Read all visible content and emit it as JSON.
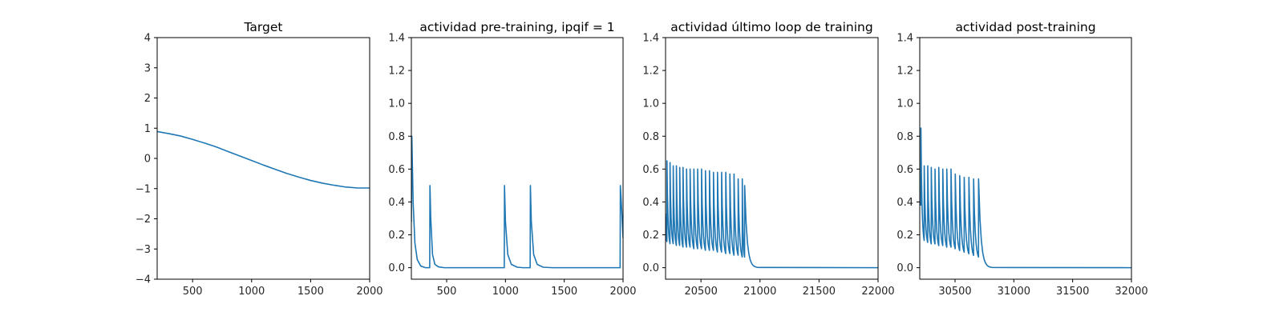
{
  "chart_data": [
    {
      "type": "line",
      "title": "Target",
      "xlim": [
        200,
        2000
      ],
      "ylim": [
        -4,
        4
      ],
      "xticks": [
        500,
        1000,
        1500,
        2000
      ],
      "yticks": [
        -4,
        -3,
        -2,
        -1,
        0,
        1,
        2,
        3,
        4
      ],
      "grid": false,
      "series": [
        {
          "color": "#1f77b4",
          "x": [
            200,
            300,
            400,
            500,
            600,
            700,
            800,
            900,
            1000,
            1100,
            1200,
            1300,
            1400,
            1500,
            1600,
            1700,
            1800,
            1900,
            2000
          ],
          "y": [
            0.89,
            0.82,
            0.74,
            0.63,
            0.51,
            0.38,
            0.23,
            0.08,
            -0.07,
            -0.22,
            -0.36,
            -0.5,
            -0.62,
            -0.73,
            -0.82,
            -0.89,
            -0.95,
            -0.98,
            -0.98
          ]
        }
      ]
    },
    {
      "type": "line",
      "title": "actividad pre-training, ipqif = 1",
      "xlim": [
        200,
        2000
      ],
      "ylim": [
        -0.07,
        1.4
      ],
      "xticks": [
        500,
        1000,
        1500,
        2000
      ],
      "yticks": [
        0.0,
        0.2,
        0.4,
        0.6,
        0.8,
        1.0,
        1.2,
        1.4
      ],
      "grid": false,
      "series": [
        {
          "color": "#1f77b4",
          "x": [
            200,
            204,
            215,
            230,
            250,
            280,
            320,
            356,
            358,
            365,
            380,
            400,
            430,
            480,
            600,
            800,
            990,
            992,
            1000,
            1020,
            1050,
            1100,
            1150,
            1210,
            1212,
            1220,
            1240,
            1270,
            1320,
            1400,
            1600,
            1800,
            1975,
            1977,
            1985,
            2000
          ],
          "y": [
            0.28,
            0.8,
            0.4,
            0.15,
            0.05,
            0.01,
            0.0,
            0.0,
            0.5,
            0.3,
            0.08,
            0.02,
            0.005,
            0.0,
            0.0,
            0.0,
            0.0,
            0.5,
            0.28,
            0.08,
            0.02,
            0.003,
            0.0,
            0.0,
            0.5,
            0.28,
            0.08,
            0.02,
            0.003,
            0.0,
            0.0,
            0.0,
            0.0,
            0.5,
            0.4,
            0.18
          ]
        }
      ]
    },
    {
      "type": "line",
      "title": "actividad último loop de training",
      "xlim": [
        20200,
        22000
      ],
      "ylim": [
        -0.07,
        1.4
      ],
      "xticks": [
        20500,
        21000,
        21500,
        22000
      ],
      "yticks": [
        0.0,
        0.2,
        0.4,
        0.6,
        0.8,
        1.0,
        1.2,
        1.4
      ],
      "grid": false,
      "series": [
        {
          "color": "#1f77b4",
          "x": [
            20200,
            20206,
            20215,
            20225,
            20237,
            20252,
            20270,
            20290,
            20312,
            20336,
            20362,
            20390,
            20420,
            20452,
            20486,
            20522,
            20560,
            20600,
            20642,
            20686,
            20732,
            20780,
            20830
          ],
          "peaks": [
            0.65,
            0.64,
            0.62,
            0.62,
            0.61,
            0.61,
            0.6,
            0.6,
            0.6,
            0.6,
            0.6,
            0.59,
            0.59,
            0.58,
            0.58,
            0.58,
            0.58,
            0.57,
            0.57,
            0.54,
            0.54,
            0.5
          ],
          "spike_times": [
            20212,
            20238,
            20265,
            20292,
            20320,
            20348,
            20378,
            20408,
            20440,
            20472,
            20505,
            20538,
            20572,
            20606,
            20640,
            20675,
            20710,
            20745,
            20780,
            20815,
            20850,
            20870
          ],
          "troughs": [
            0.15,
            0.12,
            0.12,
            0.11,
            0.11,
            0.1,
            0.1,
            0.1,
            0.09,
            0.09,
            0.09,
            0.08,
            0.08,
            0.08,
            0.07,
            0.07,
            0.06,
            0.06,
            0.05,
            0.05,
            0.04,
            0.04
          ],
          "start_value": 0.33,
          "tail_end": 22000
        }
      ]
    },
    {
      "type": "line",
      "title": "actividad post-training",
      "xlim": [
        30200,
        32000
      ],
      "ylim": [
        -0.07,
        1.4
      ],
      "xticks": [
        30500,
        31000,
        31500,
        32000
      ],
      "yticks": [
        0.0,
        0.2,
        0.4,
        0.6,
        0.8,
        1.0,
        1.2,
        1.4
      ],
      "grid": false,
      "series": [
        {
          "color": "#1f77b4",
          "spike_times": [
            30210,
            30238,
            30268,
            30298,
            30330,
            30362,
            30396,
            30430,
            30466,
            30502,
            30540,
            30578,
            30618,
            30658,
            30700
          ],
          "peaks": [
            0.85,
            0.62,
            0.62,
            0.61,
            0.6,
            0.61,
            0.6,
            0.6,
            0.6,
            0.57,
            0.56,
            0.55,
            0.55,
            0.54,
            0.54
          ],
          "troughs": [
            0.38,
            0.13,
            0.13,
            0.12,
            0.12,
            0.11,
            0.11,
            0.1,
            0.1,
            0.09,
            0.08,
            0.07,
            0.06,
            0.05,
            0.04
          ],
          "start_value": 0.4,
          "tail_end": 32000
        }
      ]
    }
  ]
}
